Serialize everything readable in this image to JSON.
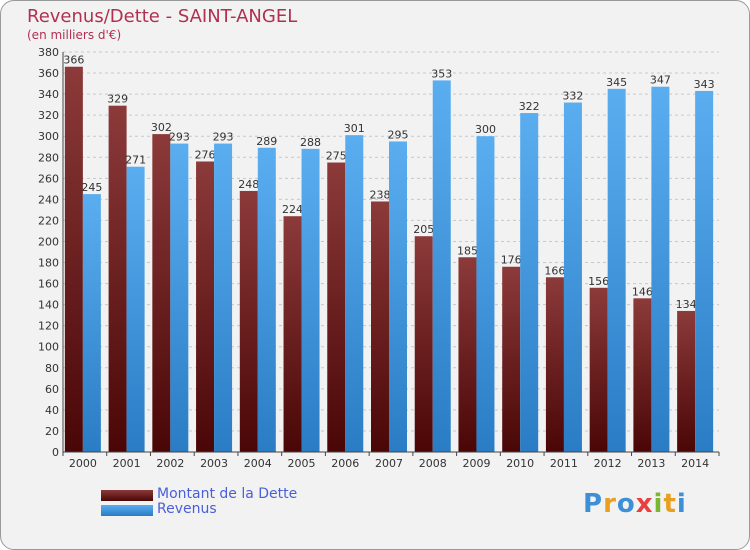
{
  "title": "Revenus/Dette - SAINT-ANGEL",
  "subtitle": "(en milliers d'€)",
  "logo": {
    "letters": [
      "P",
      "r",
      "o",
      "x",
      "i",
      "t",
      "i"
    ],
    "colors": [
      "#3d8fd6",
      "#e8a020",
      "#3d8fd6",
      "#e84040",
      "#7cb733",
      "#e8a020",
      "#3d8fd6"
    ]
  },
  "colors": {
    "dette_dark": "#5a0d0d",
    "dette_light": "#8c3a3a",
    "revenus_dark": "#2a82cc",
    "revenus_light": "#5aaef0",
    "text": "#333333"
  },
  "chart_data": {
    "type": "bar",
    "title": "Revenus/Dette - SAINT-ANGEL",
    "ylabel": "(en milliers d'€)",
    "xlabel": "",
    "ylim": [
      0,
      380
    ],
    "yticks": [
      0,
      20,
      40,
      60,
      80,
      100,
      120,
      140,
      160,
      180,
      200,
      220,
      240,
      260,
      280,
      300,
      320,
      340,
      360,
      380
    ],
    "categories": [
      "2000",
      "2001",
      "2002",
      "2003",
      "2004",
      "2005",
      "2006",
      "2007",
      "2008",
      "2009",
      "2010",
      "2011",
      "2012",
      "2013",
      "2014"
    ],
    "series": [
      {
        "name": "Montant de la Dette",
        "values": [
          366,
          329,
          302,
          276,
          248,
          224,
          275,
          238,
          205,
          185,
          176,
          166,
          156,
          146,
          134
        ]
      },
      {
        "name": "Revenus",
        "values": [
          245,
          271,
          293,
          293,
          289,
          288,
          301,
          295,
          353,
          300,
          322,
          332,
          345,
          347,
          343
        ]
      }
    ],
    "legend": "bottom-left",
    "grid": true
  }
}
